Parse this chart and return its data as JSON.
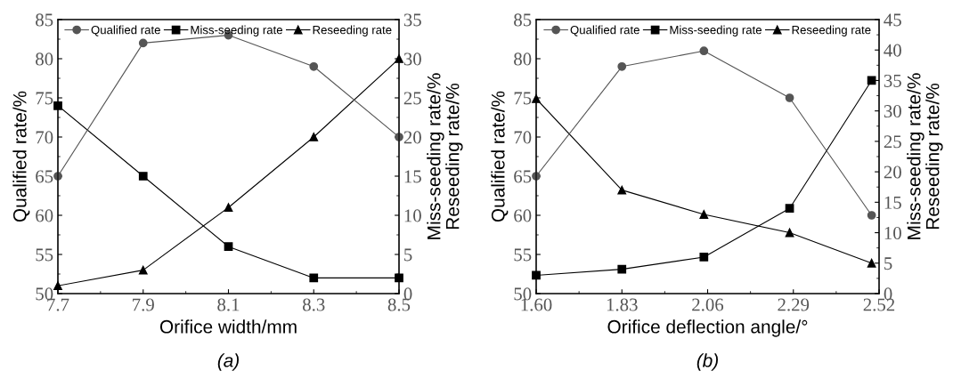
{
  "chart_data": [
    {
      "type": "line",
      "xlabel": "Orifice width/mm",
      "ylabel": "Qualified rate/%",
      "y2label": "Miss-seeding rate/%\nReseeding rate/%",
      "annotations": [
        "(a)"
      ],
      "x": [
        7.7,
        7.9,
        8.1,
        8.3,
        8.5
      ],
      "xlim": [
        7.7,
        8.5
      ],
      "xticks": [
        {
          "value": 7.7,
          "label": "7.7"
        },
        {
          "value": 7.9,
          "label": "7.9"
        },
        {
          "value": 8.1,
          "label": "8.1"
        },
        {
          "value": 8.3,
          "label": "8.3"
        },
        {
          "value": 8.5,
          "label": "8.5"
        }
      ],
      "ylim": [
        50,
        85
      ],
      "yticks": [
        50,
        55,
        60,
        65,
        70,
        75,
        80,
        85
      ],
      "y2lim": [
        0,
        35
      ],
      "y2ticks": [
        0,
        5,
        10,
        15,
        20,
        25,
        30,
        35
      ],
      "legend": "top",
      "grid": false,
      "series": [
        {
          "name": "Qualified rate",
          "color": "#555555",
          "marker": "circle",
          "values": [
            65,
            82,
            83,
            79,
            70
          ]
        },
        {
          "name": "Miss-seeding rate",
          "color": "#000000",
          "marker": "square",
          "axis": "y2",
          "values": [
            24,
            15,
            6,
            2,
            2
          ]
        },
        {
          "name": "Reseeding rate",
          "color": "#000000",
          "marker": "triangle",
          "axis": "y2",
          "values": [
            1,
            3,
            11,
            20,
            30
          ]
        }
      ]
    },
    {
      "type": "line",
      "xlabel": "Orifice deflection angle/°",
      "ylabel": "Qualified rate/%",
      "y2label": "Miss-seeding rate/%\nReseeding rate/%",
      "annotations": [
        "(b)"
      ],
      "x": [
        1.6,
        1.83,
        2.05,
        2.28,
        2.5
      ],
      "xlim": [
        1.6,
        2.52
      ],
      "xticks": [
        {
          "value": 1.6,
          "label": "1.60"
        },
        {
          "value": 1.83,
          "label": "1.83"
        },
        {
          "value": 2.06,
          "label": "2.06"
        },
        {
          "value": 2.29,
          "label": "2.29"
        },
        {
          "value": 2.52,
          "label": "2.52"
        }
      ],
      "ylim": [
        50,
        85
      ],
      "yticks": [
        50,
        55,
        60,
        65,
        70,
        75,
        80,
        85
      ],
      "y2lim": [
        0,
        45
      ],
      "y2ticks": [
        0,
        5,
        10,
        15,
        20,
        25,
        30,
        35,
        40,
        45
      ],
      "legend": "top",
      "grid": false,
      "series": [
        {
          "name": "Qualified rate",
          "color": "#555555",
          "marker": "circle",
          "values": [
            65,
            79,
            81,
            75,
            60
          ]
        },
        {
          "name": "Miss-seeding rate",
          "color": "#000000",
          "marker": "square",
          "axis": "y2",
          "values": [
            3,
            4,
            6,
            14,
            35
          ]
        },
        {
          "name": "Reseeding rate",
          "color": "#000000",
          "marker": "triangle",
          "axis": "y2",
          "values": [
            32,
            17,
            13,
            10,
            5
          ]
        }
      ]
    }
  ]
}
